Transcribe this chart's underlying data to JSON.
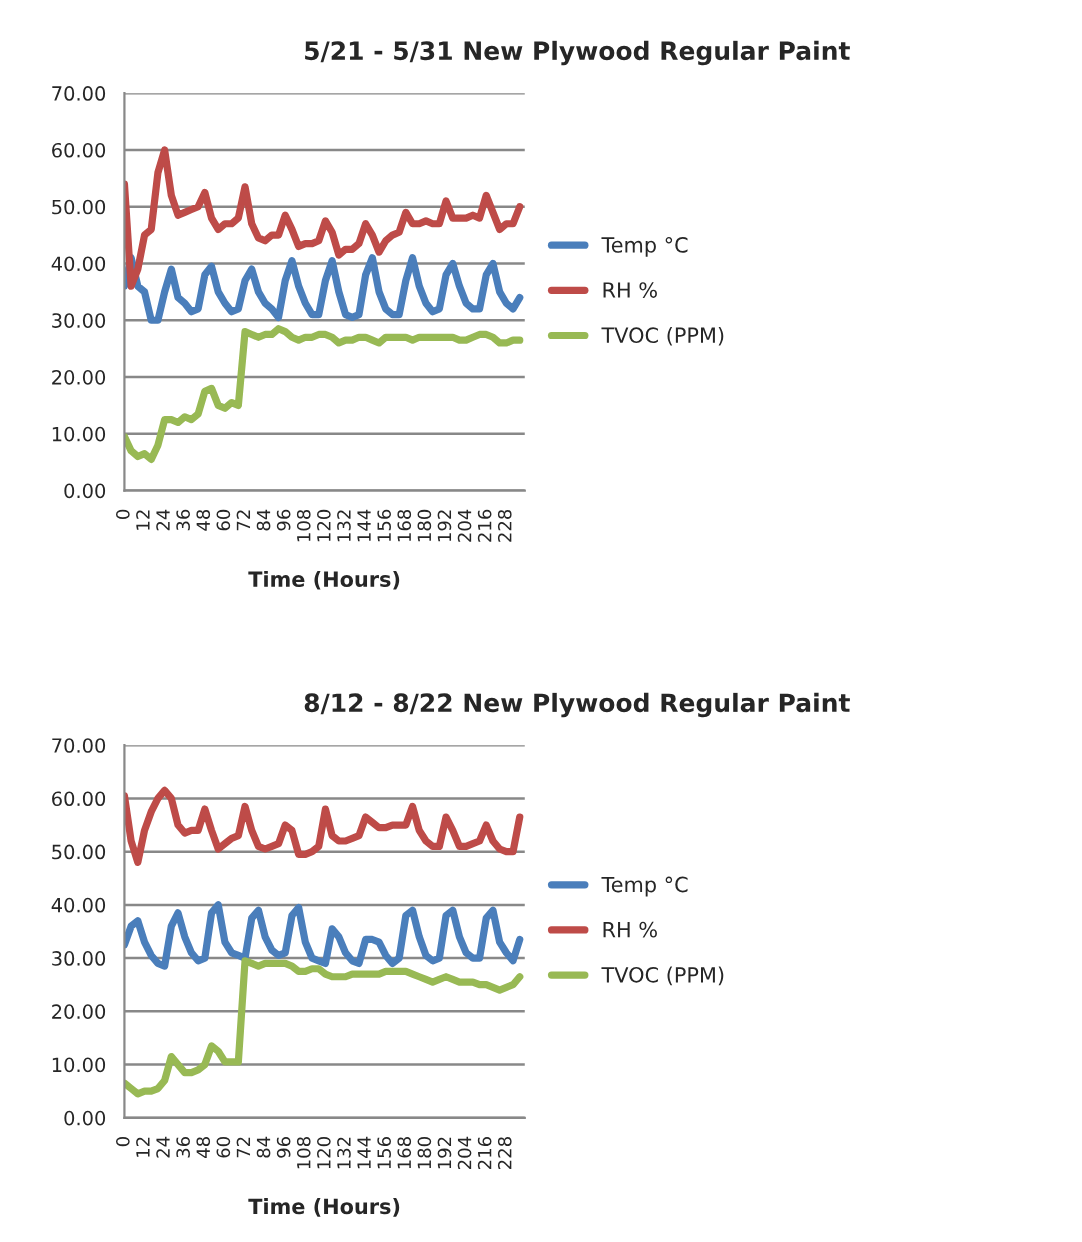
{
  "chart_data": [
    {
      "type": "line",
      "title": "5/21 - 5/31 New Plywood Regular Paint",
      "xlabel": "Time (Hours)",
      "x": [
        0,
        4,
        8,
        12,
        16,
        20,
        24,
        28,
        32,
        36,
        40,
        44,
        48,
        52,
        56,
        60,
        64,
        68,
        72,
        76,
        80,
        84,
        88,
        92,
        96,
        100,
        104,
        108,
        112,
        116,
        120,
        124,
        128,
        132,
        136,
        140,
        144,
        148,
        152,
        156,
        160,
        164,
        168,
        172,
        176,
        180,
        184,
        188,
        192,
        196,
        200,
        204,
        208,
        212,
        216,
        220,
        224,
        228,
        232,
        236
      ],
      "series": [
        {
          "name": "Temp °C",
          "color": "#4a7ebb",
          "values": [
            36,
            41,
            36,
            35,
            30,
            30,
            35,
            39,
            34,
            33,
            31.5,
            32,
            38,
            39.5,
            35,
            33,
            31.5,
            32,
            37,
            39,
            35,
            33,
            32,
            30.5,
            37,
            40.5,
            36,
            33,
            31,
            31,
            37,
            40.5,
            35,
            31,
            30.5,
            31,
            38,
            41,
            35,
            32,
            31,
            31,
            37,
            41,
            36,
            33,
            31.5,
            32,
            38,
            40,
            36,
            33,
            32,
            32,
            38,
            40,
            35,
            33,
            32,
            34
          ]
        },
        {
          "name": "RH %",
          "color": "#be4b48",
          "values": [
            54,
            36,
            39,
            45,
            46,
            56,
            60,
            52,
            48.5,
            49,
            49.5,
            50,
            52.5,
            48,
            46,
            47,
            47,
            48,
            53.5,
            47,
            44.5,
            44,
            45,
            45,
            48.5,
            46,
            43,
            43.5,
            43.5,
            44,
            47.5,
            45.5,
            41.5,
            42.5,
            42.5,
            43.5,
            47,
            45,
            42,
            44,
            45,
            45.5,
            49,
            47,
            47,
            47.5,
            47,
            47,
            51,
            48,
            48,
            48,
            48.5,
            48,
            52,
            49,
            46,
            47,
            47,
            50
          ]
        },
        {
          "name": "TVOC (PPM)",
          "color": "#98b954",
          "values": [
            9.5,
            7,
            6,
            6.5,
            5.5,
            8,
            12.5,
            12.5,
            12,
            13,
            12.5,
            13.5,
            17.5,
            18,
            15,
            14.5,
            15.5,
            15,
            28,
            27.5,
            27,
            27.5,
            27.5,
            28.5,
            28,
            27,
            26.5,
            27,
            27,
            27.5,
            27.5,
            27,
            26,
            26.5,
            26.5,
            27,
            27,
            26.5,
            26,
            27,
            27,
            27,
            27,
            26.5,
            27,
            27,
            27,
            27,
            27,
            27,
            26.5,
            26.5,
            27,
            27.5,
            27.5,
            27,
            26,
            26,
            26.5,
            26.5
          ]
        }
      ],
      "xlim": [
        0,
        239
      ],
      "xticks": [
        0,
        12,
        24,
        36,
        48,
        60,
        72,
        84,
        96,
        108,
        120,
        132,
        144,
        156,
        168,
        180,
        192,
        204,
        216,
        228
      ],
      "ylim": [
        0,
        70
      ],
      "yticks": [
        {
          "value": 0,
          "label": "0.00"
        },
        {
          "value": 10,
          "label": "10.00"
        },
        {
          "value": 20,
          "label": "20.00"
        },
        {
          "value": 30,
          "label": "30.00"
        },
        {
          "value": 40,
          "label": "40.00"
        },
        {
          "value": 50,
          "label": "50.00"
        },
        {
          "value": 60,
          "label": "60.00"
        },
        {
          "value": 70,
          "label": "70.00"
        }
      ],
      "grid": "y",
      "legend": "right",
      "marker": "none",
      "line_style": "solid"
    },
    {
      "type": "line",
      "title": "8/12 - 8/22 New Plywood Regular Paint",
      "xlabel": "Time (Hours)",
      "x": [
        0,
        4,
        8,
        12,
        16,
        20,
        24,
        28,
        32,
        36,
        40,
        44,
        48,
        52,
        56,
        60,
        64,
        68,
        72,
        76,
        80,
        84,
        88,
        92,
        96,
        100,
        104,
        108,
        112,
        116,
        120,
        124,
        128,
        132,
        136,
        140,
        144,
        148,
        152,
        156,
        160,
        164,
        168,
        172,
        176,
        180,
        184,
        188,
        192,
        196,
        200,
        204,
        208,
        212,
        216,
        220,
        224,
        228,
        232,
        236
      ],
      "series": [
        {
          "name": "Temp °C",
          "color": "#4a7ebb",
          "values": [
            32.5,
            36,
            37,
            33,
            30.5,
            29,
            28.5,
            36,
            38.5,
            34,
            31,
            29.5,
            30,
            38.5,
            40,
            33,
            31,
            30.5,
            30,
            37.5,
            39,
            34,
            31.5,
            30.5,
            31,
            38,
            39.5,
            33,
            30,
            29.5,
            29,
            35.5,
            34,
            31,
            29.5,
            29,
            33.5,
            33.5,
            33,
            30.5,
            29,
            30,
            38,
            39,
            34,
            30.5,
            29.5,
            30,
            38,
            39,
            34,
            31,
            30,
            30,
            37.5,
            39,
            33,
            31,
            29.5,
            33.5
          ]
        },
        {
          "name": "RH %",
          "color": "#be4b48",
          "values": [
            60.5,
            52,
            48,
            54,
            57.5,
            60,
            61.5,
            60,
            55,
            53.5,
            54,
            54,
            58,
            54,
            50.5,
            51.5,
            52.5,
            53,
            58.5,
            54,
            51,
            50.5,
            51,
            51.5,
            55,
            54,
            49.5,
            49.5,
            50,
            51,
            58,
            53,
            52,
            52,
            52.5,
            53,
            56.5,
            55.5,
            54.5,
            54.5,
            55,
            55,
            55,
            58.5,
            54,
            52,
            51,
            51,
            56.5,
            54,
            51,
            51,
            51.5,
            52,
            55,
            52,
            50.5,
            50,
            50,
            56.5
          ]
        },
        {
          "name": "TVOC (PPM)",
          "color": "#98b954",
          "values": [
            6.5,
            5.5,
            4.5,
            5,
            5,
            5.5,
            7,
            11.5,
            10,
            8.5,
            8.5,
            9,
            10,
            13.5,
            12.5,
            10.5,
            10.5,
            10.5,
            29.5,
            29,
            28.5,
            29,
            29,
            29,
            29,
            28.5,
            27.5,
            27.5,
            28,
            28,
            27,
            26.5,
            26.5,
            26.5,
            27,
            27,
            27,
            27,
            27,
            27.5,
            27.5,
            27.5,
            27.5,
            27,
            26.5,
            26,
            25.5,
            26,
            26.5,
            26,
            25.5,
            25.5,
            25.5,
            25,
            25,
            24.5,
            24,
            24.5,
            25,
            26.5
          ]
        }
      ],
      "xlim": [
        0,
        239
      ],
      "xticks": [
        0,
        12,
        24,
        36,
        48,
        60,
        72,
        84,
        96,
        108,
        120,
        132,
        144,
        156,
        168,
        180,
        192,
        204,
        216,
        228
      ],
      "ylim": [
        0,
        70
      ],
      "yticks": [
        {
          "value": 0,
          "label": "0.00"
        },
        {
          "value": 10,
          "label": "10.00"
        },
        {
          "value": 20,
          "label": "20.00"
        },
        {
          "value": 30,
          "label": "30.00"
        },
        {
          "value": 40,
          "label": "40.00"
        },
        {
          "value": 50,
          "label": "50.00"
        },
        {
          "value": 60,
          "label": "60.00"
        },
        {
          "value": 70,
          "label": "70.00"
        }
      ],
      "grid": "y",
      "legend": "right",
      "marker": "none",
      "line_style": "solid"
    }
  ]
}
